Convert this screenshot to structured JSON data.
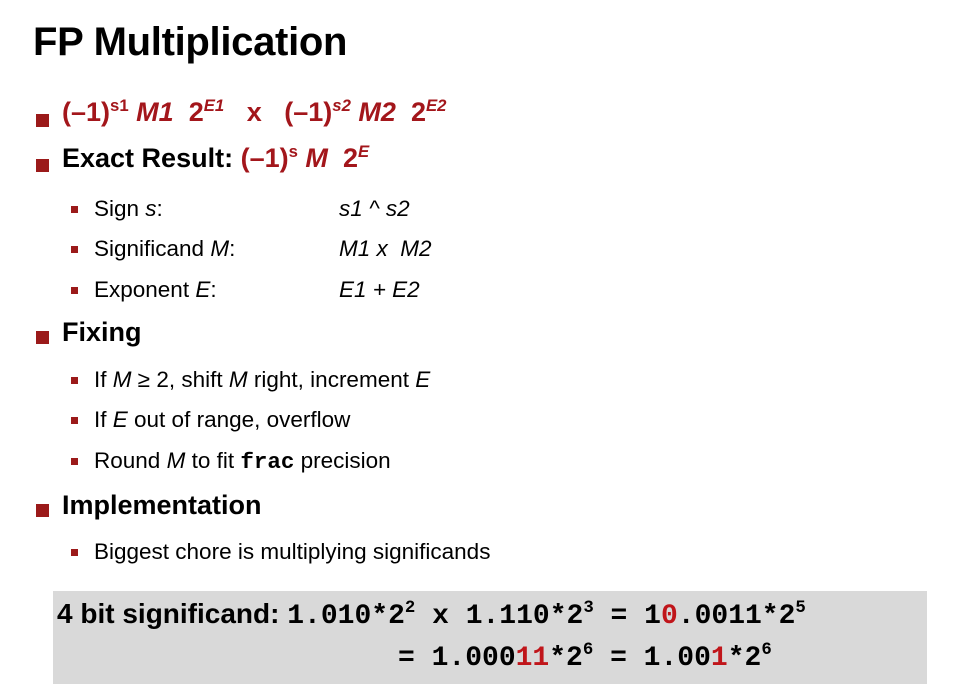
{
  "title": "FP Multiplication",
  "formula_line": {
    "a": "(–1)",
    "s1": "s1",
    "m1": "M1",
    "two1": "2",
    "e1": "E1",
    "x": "x",
    "b": "(–1)",
    "s2": "s2",
    "m2": "M2",
    "two2": "2",
    "e2": "E2"
  },
  "exact": {
    "label": "Exact Result:",
    "neg": "(–1)",
    "s": "s",
    "m": "M",
    "two": "2",
    "e": "E",
    "rows": [
      {
        "label_pre": "Sign ",
        "label_var": "s",
        "label_post": ":",
        "value": "s1 ^ s2"
      },
      {
        "label_pre": "Significand ",
        "label_var": "M",
        "label_post": ":",
        "value": "M1 x  M2"
      },
      {
        "label_pre": "Exponent ",
        "label_var": "E",
        "label_post": ":",
        "value": "E1 + E2"
      }
    ]
  },
  "fixing": {
    "label": "Fixing",
    "item1": {
      "a": "If ",
      "b": "M",
      "c": " ≥ 2, shift ",
      "d": "M",
      "e": " right, increment ",
      "f": "E"
    },
    "item2": {
      "a": "If ",
      "b": "E",
      "c": " out of range, overflow"
    },
    "item3": {
      "a": "Round ",
      "b": "M",
      "c": " to fit ",
      "code": "frac",
      "d": " precision"
    }
  },
  "implementation": {
    "label": "Implementation",
    "item1": "Biggest chore is multiplying significands"
  },
  "example": {
    "label": "4 bit significand:",
    "line1": {
      "t1": "1.010*2",
      "e1": "2",
      "t2": " x 1.110*2",
      "e2": "3",
      "t3": " = 1",
      "h1": "0",
      "t4": ".0011*2",
      "e3": "5"
    },
    "line2": {
      "t1": "= 1.000",
      "h1": "11",
      "t2": "*2",
      "e1": "6",
      "t3": " = 1.00",
      "h2": "1",
      "t4": "*2",
      "e2": "6"
    }
  },
  "colors": {
    "accent": "#a3161b",
    "bullet": "#9b1a1a",
    "box": "#d9d9d9"
  }
}
